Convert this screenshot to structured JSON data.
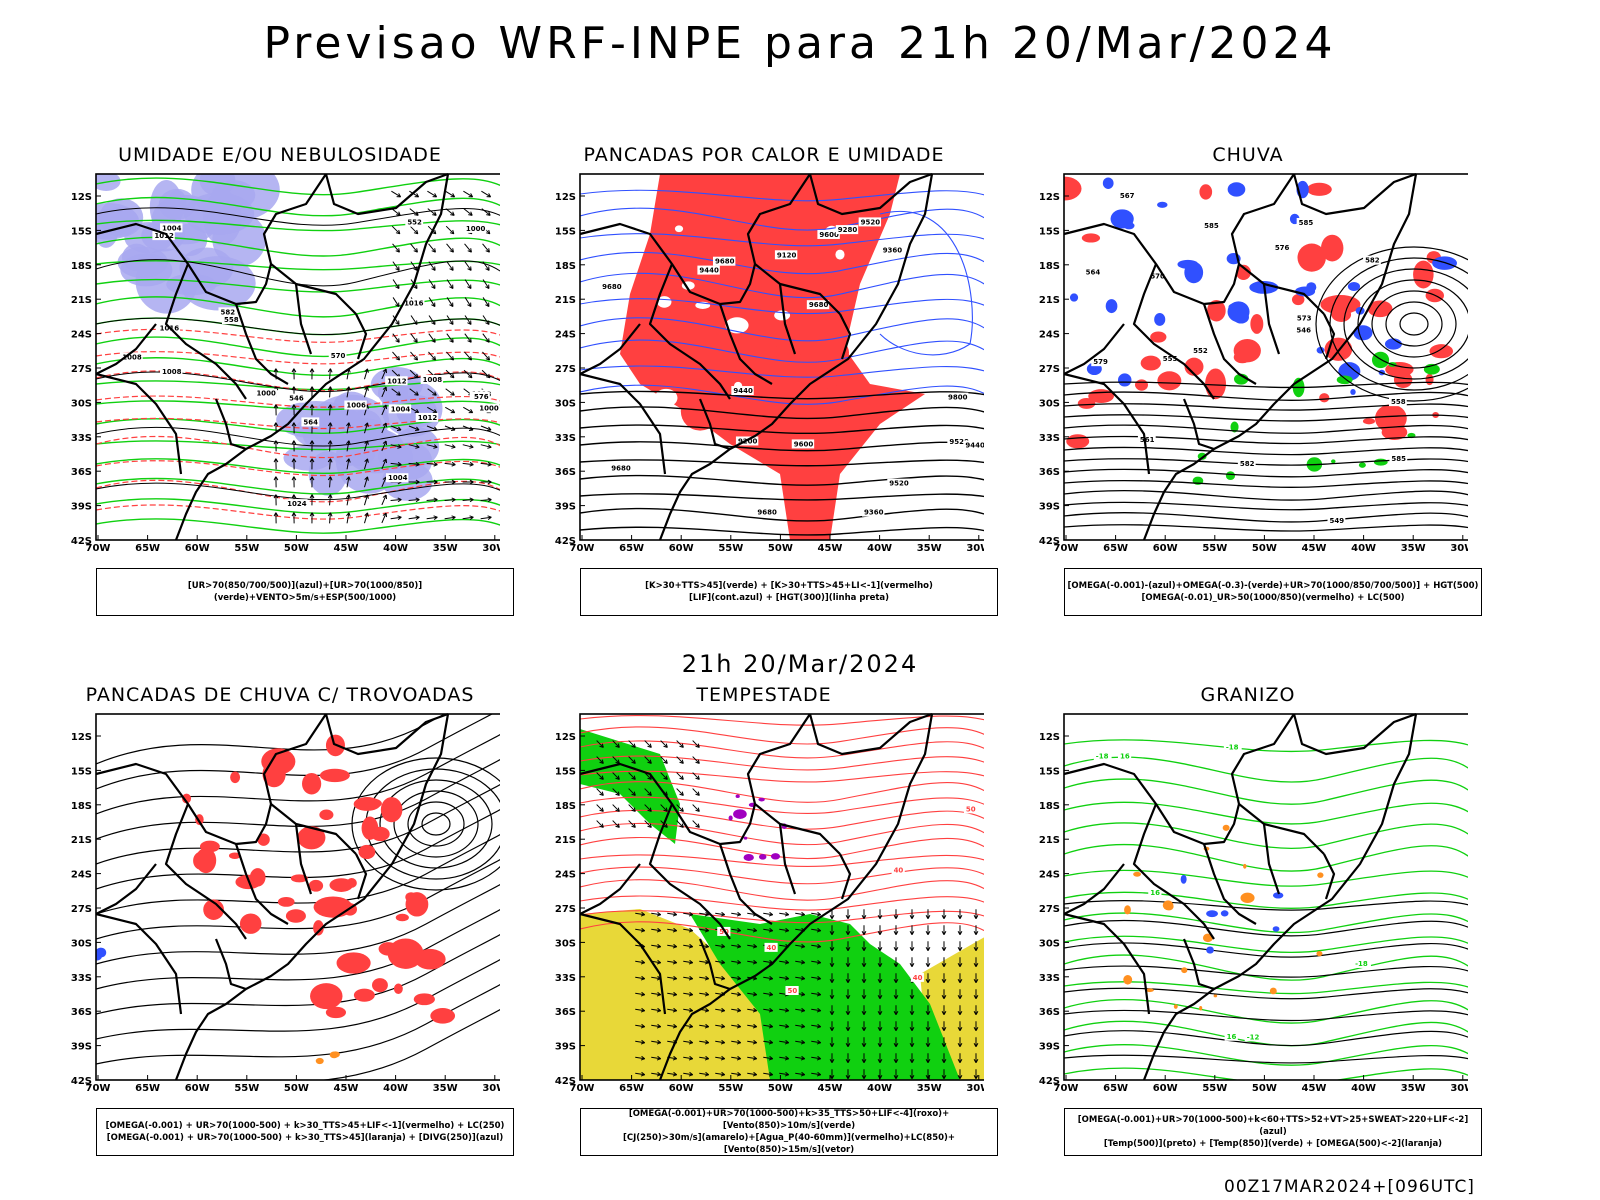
{
  "title": "Previsao WRF-INPE  para 21h 20/Mar/2024",
  "mid_title": "21h 20/Mar/2024",
  "footer": "00Z17MAR2024+[096UTC]",
  "lat_labels": [
    "12S",
    "15S",
    "18S",
    "21S",
    "24S",
    "27S",
    "30S",
    "33S",
    "36S",
    "39S",
    "42S"
  ],
  "lon_labels": [
    "70W",
    "65W",
    "60W",
    "55W",
    "50W",
    "45W",
    "40W",
    "35W",
    "30W"
  ],
  "colors": {
    "red": "#ff4040",
    "blue": "#3050ff",
    "green": "#10d010",
    "yellow": "#e8d838",
    "lavender": "#a8a8f0",
    "orange": "#ff9020",
    "purple": "#a000c0"
  },
  "panels": [
    {
      "title": "UMIDADE E/OU NEBULOSIDADE",
      "legend": [
        "[UR>70(850/700/500)](azul)+[UR>70(1000/850)](verde)+VENTO>5m/s+ESP(500/1000)"
      ],
      "contour_labels": [
        "1008",
        "1008",
        "1006",
        "1012",
        "1004",
        "1012",
        "1008",
        "1000",
        "1000",
        "1004",
        "1008",
        "1016",
        "1000",
        "1004",
        "582",
        "576",
        "570",
        "564",
        "558",
        "552",
        "546",
        "1012",
        "1016",
        "1024"
      ]
    },
    {
      "title": "PANCADAS POR CALOR E UMIDADE",
      "legend": [
        "[K>30+TTS>45](verde) + [K>30+TTS>45+LI<-1](vermelho)",
        "[LIF](cont.azul) + [HGT(300)](linha preta)"
      ],
      "contour_labels": [
        "9680",
        "9680",
        "9680",
        "9680",
        "9600",
        "9520",
        "9680",
        "9600",
        "9520",
        "9440",
        "9360",
        "9280",
        "9200",
        "9120",
        "9800",
        "9520",
        "9440",
        "9360",
        "9440"
      ]
    },
    {
      "title": "CHUVA",
      "legend": [
        "[OMEGA(-0.001)-(azul)+OMEGA(-0.3)-(verde)+UR>70(1000/850/700/500)] + HGT(500)",
        "[OMEGA(-0.01)_UR>50(1000/850)(vermelho) + LC(500)"
      ],
      "contour_labels": [
        "585",
        "585",
        "585",
        "582",
        "582",
        "579",
        "576",
        "573",
        "570",
        "567",
        "564",
        "561",
        "558",
        "555",
        "552",
        "549",
        "546"
      ]
    },
    {
      "title": "PANCADAS DE CHUVA C/ TROVOADAS",
      "legend": [
        "[OMEGA(-0.001) + UR>70(1000-500) + k>30_TTS>45+LIF<-1](vermelho) + LC(250)",
        "[OMEGA(-0.001) + UR>70(1000-500) + k>30_TTS>45](laranja) + [DIVG(250)](azul)"
      ],
      "contour_labels": []
    },
    {
      "title": "TEMPESTADE",
      "legend": [
        "[OMEGA(-0.001)+UR>70(1000-500)+k>35_TTS>50+LIF<-4](roxo)+[Vento(850)>10m/s](verde)",
        "[CJ(250)>30m/s](amarelo)+[Agua_P(40-60mm)](vermelho)+LC(850)+[Vento(850)>15m/s](vetor)"
      ],
      "contour_labels": [
        "40",
        "50",
        "40",
        "50",
        "40",
        "50"
      ]
    },
    {
      "title": "GRANIZO",
      "legend": [
        "[OMEGA(-0.001)+UR>70(1000-500)+k<60+TTS>52+VT>25+SWEAT>220+LIF<-2](azul)",
        "[Temp(500)](preto) + [Temp(850)](verde) + [OMEGA(500)<-2](laranja)"
      ],
      "contour_labels": [
        "16",
        "16",
        "16",
        "-12",
        "-18",
        "-18",
        "-18"
      ]
    }
  ]
}
